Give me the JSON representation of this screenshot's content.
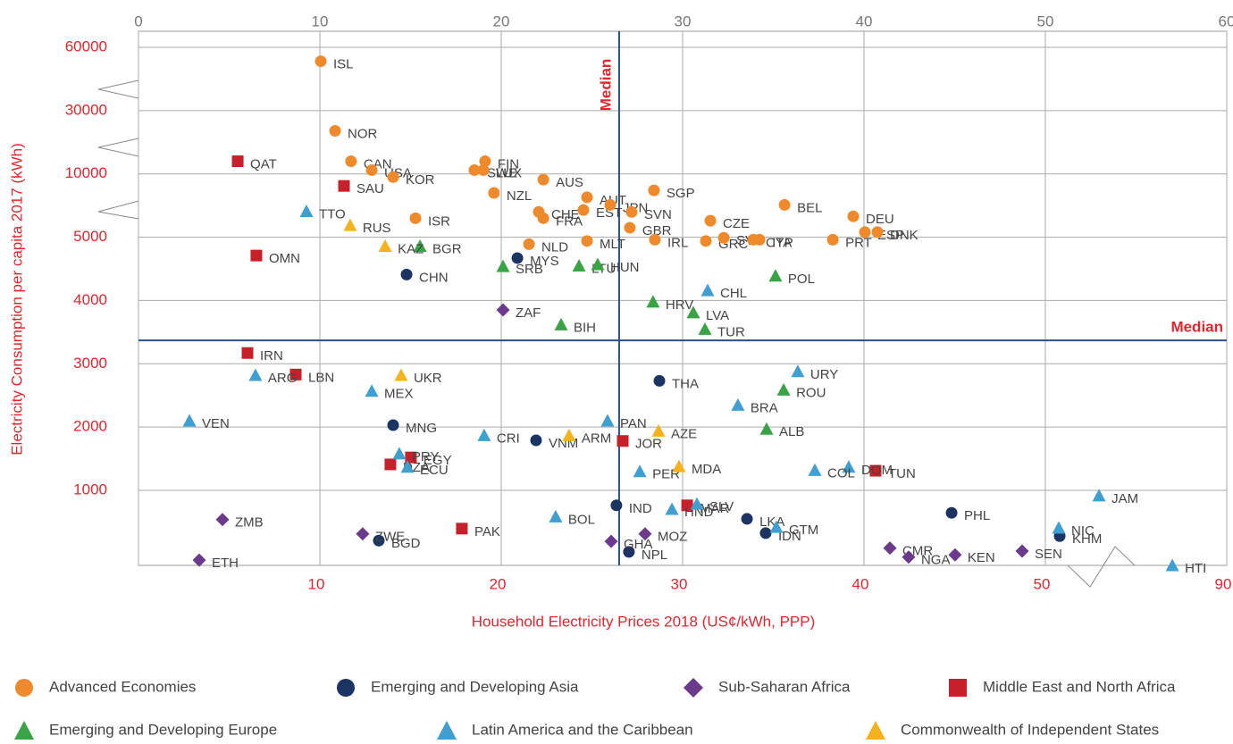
{
  "chart_data": {
    "type": "scatter",
    "y_label": "Electricity Consumption per capita 2017 (kWh)",
    "x_label": "Household Electricity Prices 2018 (US¢/kWh, PPP)",
    "xlim": [
      0,
      60
    ],
    "ylim": [
      0,
      60000
    ],
    "xticks": [
      0,
      10,
      20,
      30,
      40,
      50,
      60
    ],
    "xticks_bottom": [
      10,
      20,
      30,
      40,
      50,
      {
        "value": 60,
        "label": "90"
      }
    ],
    "yticks": [
      1000,
      2000,
      3000,
      4000,
      5000,
      10000,
      30000,
      60000
    ],
    "grid": true,
    "median": {
      "label": "Median",
      "x": 26.5,
      "y": 3370
    },
    "series": [
      {
        "name": "Advanced Economies",
        "color": "#ee8a2c",
        "marker": "circle",
        "labels": [
          "ISL",
          "NOR",
          "CAN",
          "USA",
          "KOR",
          "SWE",
          "FIN",
          "LUX",
          "AUS",
          "NZL",
          "CHE",
          "FRA",
          "ISR",
          "AUT",
          "EST",
          "NLD",
          "MLT",
          "GBR",
          "IRL",
          "GRC",
          "SVK",
          "CZE",
          "CYP",
          "ITA",
          "BEL",
          "DEU",
          "ESP",
          "DNK",
          "PRT",
          "SGP",
          "JPN",
          "SVN"
        ],
        "x": [
          10.05,
          10.84,
          11.72,
          12.86,
          14.04,
          18.52,
          19.11,
          19.01,
          22.32,
          19.6,
          22.07,
          22.32,
          15.27,
          24.73,
          24.53,
          21.53,
          24.73,
          27.09,
          28.47,
          31.28,
          32.27,
          31.53,
          33.89,
          34.24,
          35.62,
          39.41,
          40.05,
          40.74,
          38.28,
          28.42,
          26.01,
          27.19
        ],
        "values": [
          53400,
          23600,
          14000,
          11200,
          9750,
          11200,
          14000,
          11200,
          9550,
          8500,
          7000,
          6500,
          6500,
          8150,
          7150,
          4890,
          4940,
          5750,
          4960,
          4940,
          4990,
          6300,
          4960,
          4960,
          7550,
          6650,
          5400,
          5400,
          4960,
          8700,
          7550,
          7000
        ]
      },
      {
        "name": "Emerging and Developing Asia",
        "color": "#1c3462",
        "marker": "circle",
        "labels": [
          "CHN",
          "MYS",
          "THA",
          "MNG",
          "VNM",
          "IND",
          "IDN",
          "LKA",
          "PHL",
          "KHM",
          "BGD",
          "NPL"
        ],
        "x": [
          14.78,
          20.89,
          28.72,
          14.04,
          21.92,
          26.35,
          34.58,
          33.55,
          44.83,
          50.79,
          13.25,
          27.04
        ],
        "values": [
          4410,
          4670,
          2730,
          2030,
          1790,
          800,
          430,
          620,
          700,
          390,
          330,
          180
        ]
      },
      {
        "name": "Sub-Saharan Africa",
        "color": "#6b3a8c",
        "marker": "diamond",
        "labels": [
          "ZAF",
          "ZMB",
          "ZWE",
          "ETH",
          "GHA",
          "MOZ",
          "CMR",
          "NGA",
          "KEN",
          "SEN"
        ],
        "x": [
          20.1,
          4.63,
          12.36,
          3.35,
          26.06,
          27.93,
          41.43,
          42.46,
          45.02,
          48.72
        ],
        "values": [
          3850,
          610,
          420,
          70,
          320,
          420,
          230,
          110,
          140,
          190
        ]
      },
      {
        "name": "Middle East and North Africa",
        "color": "#c8202a",
        "marker": "square",
        "labels": [
          "QAT",
          "SAU",
          "OMN",
          "IRN",
          "LBN",
          "EGY",
          "DZA",
          "JOR",
          "TUN",
          "PAK",
          "MAR"
        ],
        "x": [
          5.47,
          11.33,
          6.5,
          6.01,
          8.67,
          15.02,
          13.89,
          26.7,
          40.64,
          17.83,
          30.25
        ],
        "values": [
          14000,
          9050,
          4710,
          3170,
          2830,
          1520,
          1410,
          1780,
          1310,
          490,
          800
        ]
      },
      {
        "name": "Emerging and Developing Europe",
        "color": "#3aa346",
        "marker": "triangle",
        "labels": [
          "BGR",
          "SRB",
          "LTU",
          "HUN",
          "BIH",
          "HRV",
          "LVA",
          "TUR",
          "POL",
          "ROU",
          "ALB"
        ],
        "x": [
          15.52,
          20.1,
          24.29,
          25.32,
          23.3,
          28.37,
          30.59,
          31.23,
          35.12,
          35.57,
          34.63
        ],
        "values": [
          4860,
          4540,
          4550,
          4570,
          3620,
          3980,
          3810,
          3550,
          4390,
          2590,
          1970
        ]
      },
      {
        "name": "Latin America and the Caribbean",
        "color": "#3e9fd0",
        "marker": "triangle",
        "labels": [
          "TTO",
          "CHL",
          "ARG",
          "MEX",
          "URY",
          "BRA",
          "VEN",
          "PAN",
          "CRI",
          "PRY",
          "ECU",
          "PER",
          "DOM",
          "COL",
          "HND",
          "SLV",
          "BOL",
          "GTM",
          "JAM",
          "NIC",
          "HTI"
        ],
        "x": [
          9.26,
          31.38,
          6.45,
          12.86,
          36.35,
          33.05,
          2.81,
          25.86,
          19.06,
          14.38,
          14.83,
          27.64,
          39.16,
          37.29,
          29.41,
          30.79,
          23.0,
          35.17,
          52.96,
          50.74,
          57.0
        ],
        "values": [
          7050,
          4160,
          2820,
          2570,
          2880,
          2350,
          2100,
          2100,
          1870,
          1580,
          1370,
          1300,
          1370,
          1320,
          750,
          820,
          650,
          510,
          930,
          500,
          0
        ]
      },
      {
        "name": "Commonwealth of Independent States",
        "color": "#f5b21d",
        "marker": "triangle",
        "labels": [
          "RUS",
          "KAZ",
          "UKR",
          "ARM",
          "AZE",
          "MDA"
        ],
        "x": [
          11.67,
          13.6,
          14.48,
          23.74,
          28.67,
          29.8
        ],
        "values": [
          5950,
          4860,
          2820,
          1870,
          1940,
          1380
        ]
      }
    ]
  }
}
